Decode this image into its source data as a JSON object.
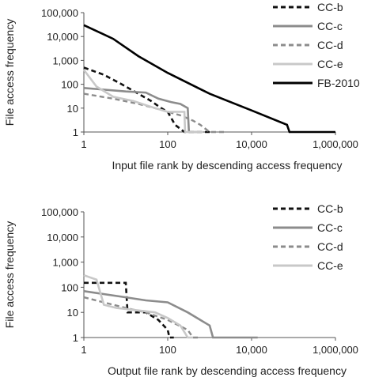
{
  "chart_data": [
    {
      "type": "line",
      "xscale": "log",
      "yscale": "log",
      "xlim": [
        1,
        1000000
      ],
      "ylim": [
        1,
        100000
      ],
      "xticks": [
        "1",
        "100",
        "10,000",
        "1,000,000"
      ],
      "yticks": [
        "1",
        "10",
        "100",
        "1,000",
        "10,000",
        "100,000"
      ],
      "xlabel": "Input file rank by descending  access frequency",
      "ylabel": "File access frequency",
      "legend_position": "top-right",
      "series": [
        {
          "name": "CC-b",
          "color": "#111111",
          "dash": "6,4",
          "width": 2.6,
          "x": [
            1,
            3,
            8,
            20,
            40,
            70,
            100,
            150,
            250,
            800,
            1000
          ],
          "y": [
            500,
            250,
            100,
            40,
            20,
            10,
            7,
            2,
            1,
            1,
            1
          ]
        },
        {
          "name": "CC-c",
          "color": "#8c8c8c",
          "dash": "",
          "width": 2.6,
          "x": [
            1,
            10,
            30,
            60,
            120,
            200,
            300,
            320,
            400,
            600
          ],
          "y": [
            70,
            50,
            45,
            25,
            18,
            15,
            10,
            1,
            1,
            1
          ]
        },
        {
          "name": "CC-d",
          "color": "#8c8c8c",
          "dash": "6,4",
          "width": 2.4,
          "x": [
            1,
            5,
            20,
            50,
            100,
            200,
            400,
            600,
            1000,
            2500
          ],
          "y": [
            40,
            25,
            15,
            10,
            7,
            5,
            3,
            2,
            1,
            1
          ]
        },
        {
          "name": "CC-e",
          "color": "#c8c8c8",
          "dash": "",
          "width": 2.6,
          "x": [
            1,
            2,
            5,
            15,
            50,
            100,
            250,
            260,
            700
          ],
          "y": [
            400,
            80,
            30,
            20,
            10,
            7,
            7,
            1,
            1
          ]
        },
        {
          "name": "FB-2010",
          "color": "#000000",
          "dash": "",
          "width": 2.6,
          "x": [
            1,
            5,
            20,
            100,
            1000,
            10000,
            70000,
            80000,
            1000000
          ],
          "y": [
            30000,
            8000,
            1500,
            300,
            40,
            8,
            2,
            1,
            1
          ]
        }
      ]
    },
    {
      "type": "line",
      "xscale": "log",
      "yscale": "log",
      "xlim": [
        1,
        1000000
      ],
      "ylim": [
        1,
        100000
      ],
      "xticks": [
        "1",
        "100",
        "10,000",
        "1,000,000"
      ],
      "yticks": [
        "1",
        "10",
        "100",
        "1,000",
        "10,000",
        "100,000"
      ],
      "xlabel": "Output file rank by descending access frequency",
      "ylabel": "File access frequency",
      "legend_position": "top-right",
      "series": [
        {
          "name": "CC-b",
          "color": "#111111",
          "dash": "6,4",
          "width": 2.6,
          "x": [
            1,
            10,
            11,
            30,
            60,
            100,
            110,
            130,
            140
          ],
          "y": [
            150,
            150,
            10,
            10,
            5,
            2,
            1,
            1,
            1
          ]
        },
        {
          "name": "CC-c",
          "color": "#8c8c8c",
          "dash": "",
          "width": 2.6,
          "x": [
            1,
            10,
            30,
            100,
            300,
            600,
            1000,
            1200,
            14000
          ],
          "y": [
            70,
            40,
            30,
            25,
            10,
            5,
            3,
            1,
            1
          ]
        },
        {
          "name": "CC-d",
          "color": "#8c8c8c",
          "dash": "6,4",
          "width": 2.4,
          "x": [
            1,
            10,
            30,
            100,
            300,
            400,
            600
          ],
          "y": [
            40,
            15,
            10,
            5,
            2,
            1,
            1
          ]
        },
        {
          "name": "CC-e",
          "color": "#c8c8c8",
          "dash": "",
          "width": 2.6,
          "x": [
            1,
            2,
            3,
            6,
            50,
            100,
            200,
            300,
            400
          ],
          "y": [
            300,
            200,
            20,
            15,
            10,
            6,
            3,
            1,
            1
          ]
        }
      ]
    }
  ]
}
